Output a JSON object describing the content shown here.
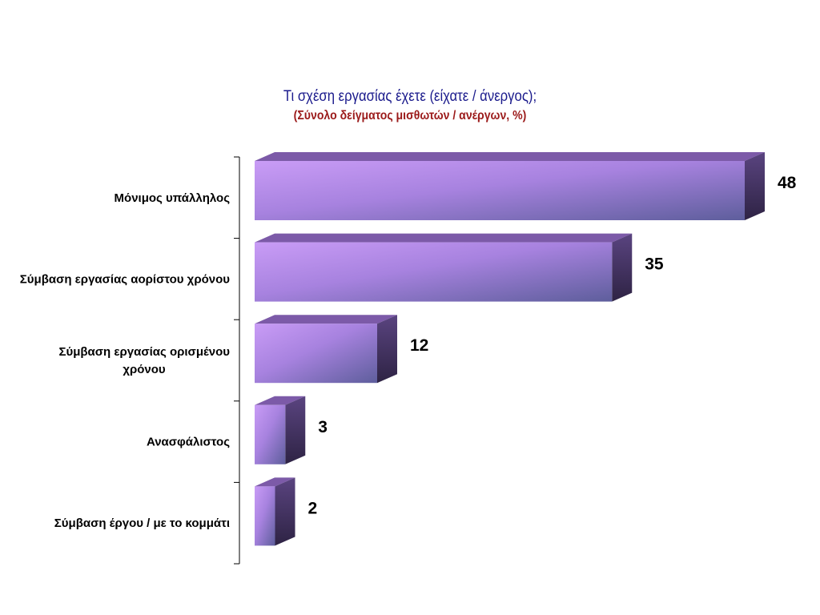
{
  "chart_data": {
    "type": "bar",
    "orientation": "horizontal",
    "title": "Τι σχέση εργασίας έχετε (είχατε / άνεργος);",
    "subtitle": "(Σύνολο δείγματος μισθωτών / ανέργων, %)",
    "categories": [
      "Μόνιμος υπάλληλος",
      "Σύμβαση εργασίας αορίστου χρόνου",
      "Σύμβαση εργασίας ορισμένου χρόνου",
      "Ανασφάλιστος",
      "Σύμβαση έργου / με το κομμάτι"
    ],
    "category_lines": [
      [
        "Μόνιμος υπάλληλος"
      ],
      [
        "Σύμβαση εργασίας αορίστου χρόνου"
      ],
      [
        "Σύμβαση εργασίας ορισμένου",
        "χρόνου"
      ],
      [
        "Ανασφάλιστος"
      ],
      [
        "Σύμβαση έργου / με το κομμάτι"
      ]
    ],
    "values": [
      48,
      35,
      12,
      3,
      2
    ],
    "data_labels": [
      "48",
      "35",
      "12",
      "3",
      "2"
    ],
    "xlim": [
      0,
      48
    ],
    "xlabel": "",
    "ylabel": "",
    "grid": false,
    "legend": "none",
    "colors": {
      "bar_front_light": "#c99cf6",
      "bar_front_dark": "#5e5e9c",
      "bar_top": "#7c5aa8",
      "bar_side": "#3e2d5c",
      "axis": "#000000"
    }
  }
}
